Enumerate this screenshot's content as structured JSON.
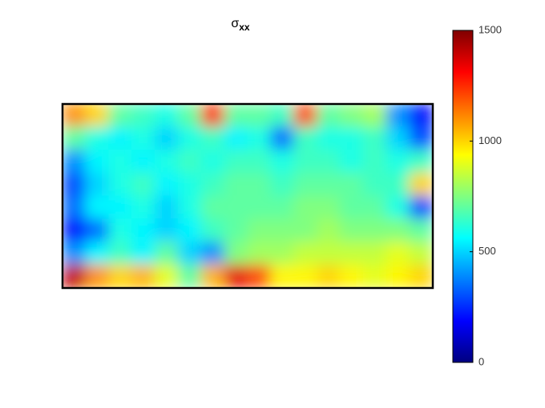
{
  "chart_data": {
    "type": "heatmap",
    "title": {
      "text": "σ",
      "subscript": "xx"
    },
    "colormap": "jet",
    "clim": [
      0,
      1500
    ],
    "cticks": [
      0,
      500,
      1000,
      1500
    ],
    "values": [
      [
        1100,
        1000,
        700,
        650,
        600,
        700,
        1250,
        700,
        700,
        650,
        1200,
        700,
        750,
        800,
        400,
        200
      ],
      [
        700,
        600,
        550,
        600,
        500,
        600,
        650,
        550,
        600,
        350,
        650,
        600,
        600,
        650,
        500,
        300
      ],
      [
        400,
        550,
        600,
        550,
        600,
        650,
        600,
        650,
        650,
        600,
        650,
        650,
        600,
        650,
        600,
        650
      ],
      [
        300,
        500,
        600,
        650,
        550,
        600,
        650,
        700,
        700,
        650,
        700,
        700,
        700,
        650,
        650,
        1000
      ],
      [
        350,
        550,
        550,
        600,
        500,
        600,
        700,
        700,
        700,
        700,
        750,
        750,
        700,
        700,
        600,
        300
      ],
      [
        200,
        350,
        600,
        550,
        500,
        550,
        650,
        700,
        750,
        750,
        750,
        800,
        750,
        750,
        750,
        700
      ],
      [
        400,
        550,
        650,
        550,
        700,
        500,
        400,
        750,
        800,
        800,
        850,
        850,
        850,
        850,
        900,
        850
      ],
      [
        1400,
        1100,
        1000,
        1050,
        900,
        700,
        1050,
        1350,
        1200,
        950,
        950,
        1000,
        950,
        900,
        950,
        1000
      ]
    ]
  }
}
